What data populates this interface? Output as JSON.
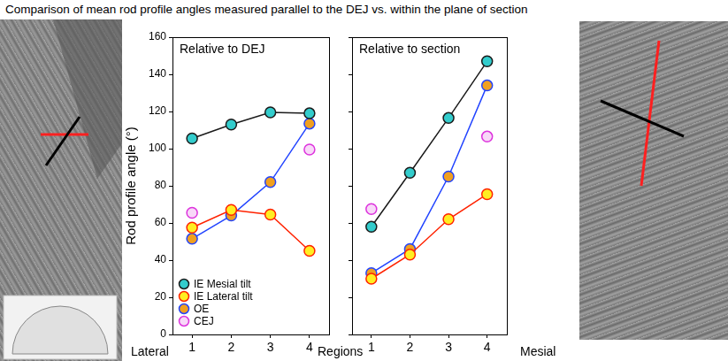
{
  "title": "Comparison of mean rod profile angles measured parallel to the DEJ vs. within the plane of section",
  "bottom_labels": [
    "Lateral",
    "Regions",
    "Mesial"
  ],
  "chart_data": [
    {
      "type": "line",
      "title": "Relative to DEJ",
      "ylabel": "Rod profile angle (°)",
      "categories": [
        1,
        2,
        3,
        4
      ],
      "ylim": [
        0,
        160
      ],
      "yticks": [
        0,
        20,
        40,
        60,
        80,
        100,
        120,
        140,
        160
      ],
      "grid": false,
      "legend": "lower left",
      "series": [
        {
          "name": "IE Mesial tilt",
          "color": "#33cccc",
          "marker": "circle",
          "line_style": "solid",
          "values": [
            105.5,
            113,
            119.5,
            119
          ]
        },
        {
          "name": "IE Lateral tilt",
          "color": "#ffee22",
          "marker": "circle",
          "line_style": "solid",
          "values": [
            57.5,
            67,
            64.5,
            45
          ]
        },
        {
          "name": "OE",
          "color": "#f0a020",
          "marker": "circle",
          "line_style": "solid",
          "values": [
            51.5,
            64,
            82,
            113.5
          ]
        },
        {
          "name": "CEJ",
          "color": "#f8d8f8",
          "marker": "circle",
          "line_style": "none",
          "values": [
            65.5,
            null,
            null,
            99.5
          ]
        }
      ]
    },
    {
      "type": "line",
      "title": "Relative to section",
      "categories": [
        1,
        2,
        3,
        4
      ],
      "ylim": [
        0,
        160
      ],
      "yticks": [
        0,
        20,
        40,
        60,
        80,
        100,
        120,
        140,
        160
      ],
      "grid": false,
      "tick_labels": "x",
      "series": [
        {
          "name": "IE Mesial tilt",
          "color": "#33cccc",
          "marker": "circle",
          "line_style": "solid",
          "values": [
            58,
            87,
            116.5,
            147
          ]
        },
        {
          "name": "IE Lateral tilt",
          "color": "#ffee22",
          "marker": "circle",
          "line_style": "solid",
          "values": [
            30,
            43,
            62,
            75.5
          ]
        },
        {
          "name": "OE",
          "color": "#f0a020",
          "marker": "circle",
          "line_style": "solid",
          "values": [
            33,
            46,
            85,
            134
          ]
        },
        {
          "name": "CEJ",
          "color": "#f8d8f8",
          "marker": "circle",
          "line_style": "none",
          "values": [
            67.5,
            null,
            null,
            106.5
          ]
        }
      ]
    }
  ]
}
